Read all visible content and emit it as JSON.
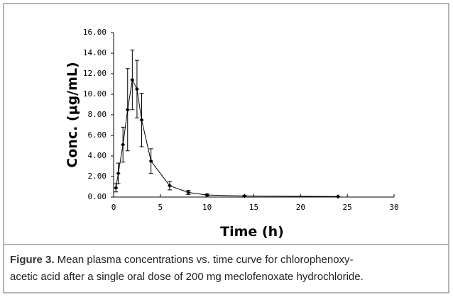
{
  "chart_data": {
    "type": "line",
    "x_label": "Time (h)",
    "y_label": "Conc. (μg/mL)",
    "x": [
      0.25,
      0.5,
      1,
      1.5,
      2,
      2.5,
      3,
      4,
      6,
      8,
      10,
      14,
      24
    ],
    "series": [
      {
        "color": "#000000",
        "values": [
          0.9,
          2.3,
          5.1,
          8.5,
          11.4,
          10.5,
          7.5,
          3.5,
          1.1,
          0.45,
          0.2,
          0.1,
          0.05
        ],
        "errors": [
          0.4,
          1.0,
          1.7,
          4.0,
          2.9,
          2.8,
          2.6,
          1.2,
          0.4,
          0.2,
          0.1,
          0.05,
          0.03
        ]
      }
    ],
    "xlim": [
      0,
      30
    ],
    "xticks": [
      0,
      5,
      10,
      15,
      20,
      25,
      30
    ],
    "ylim": [
      0,
      16
    ],
    "yticks": [
      {
        "value": 0,
        "label": "0.00"
      },
      {
        "value": 2,
        "label": "2.00"
      },
      {
        "value": 4,
        "label": "4.00"
      },
      {
        "value": 6,
        "label": "6.00"
      },
      {
        "value": 8,
        "label": "8.00"
      },
      {
        "value": 10,
        "label": "10.00"
      },
      {
        "value": 12,
        "label": "12.00"
      },
      {
        "value": 14,
        "label": "14.00"
      },
      {
        "value": 16,
        "label": "16.00"
      }
    ],
    "caption": {
      "label": "Figure 3.",
      "text_line1": "Mean plasma concentrations vs. time curve for chlorophenoxy-",
      "text_line2": "acetic acid after a single oral dose of 200 mg meclofenoxate hydrochloride."
    }
  }
}
